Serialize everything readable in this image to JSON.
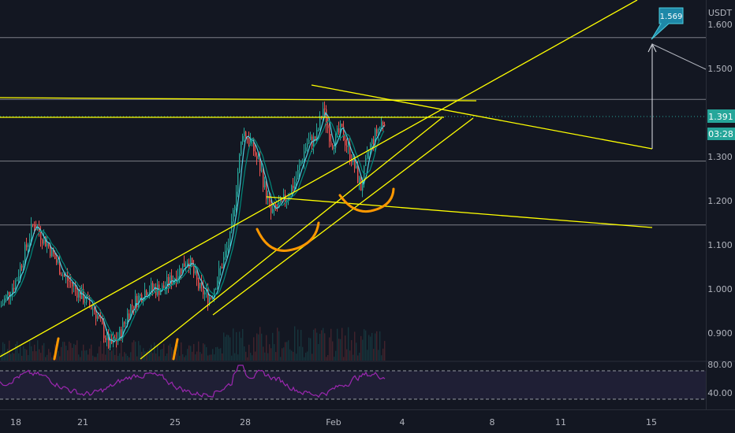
{
  "chart_data": {
    "type": "candlestick",
    "quote_currency": "USDT",
    "price_axis": {
      "ticks": [
        "1.600",
        "1.500",
        "1.300",
        "1.200",
        "1.100",
        "1.000",
        "0.900"
      ],
      "range": [
        0.83,
        1.63
      ]
    },
    "last_price": "1.391",
    "countdown": "03:28",
    "target_price": "1.569",
    "x_axis": {
      "ticks": [
        "18",
        "21",
        "25",
        "28",
        "Feb",
        "4",
        "8",
        "11",
        "15"
      ]
    },
    "rsi": {
      "levels": [
        "80.00",
        "40.00"
      ]
    },
    "horizontal_levels": [
      1.57,
      1.43,
      1.29,
      1.145
    ],
    "colors": {
      "background": "#131722",
      "up": "#26a69a",
      "down": "#ef5350",
      "drawing": "#ffff00",
      "arc": "#ff9800",
      "rsi": "#9c27b0",
      "last_price": "#26a69a",
      "label": "#1e88a8"
    }
  }
}
